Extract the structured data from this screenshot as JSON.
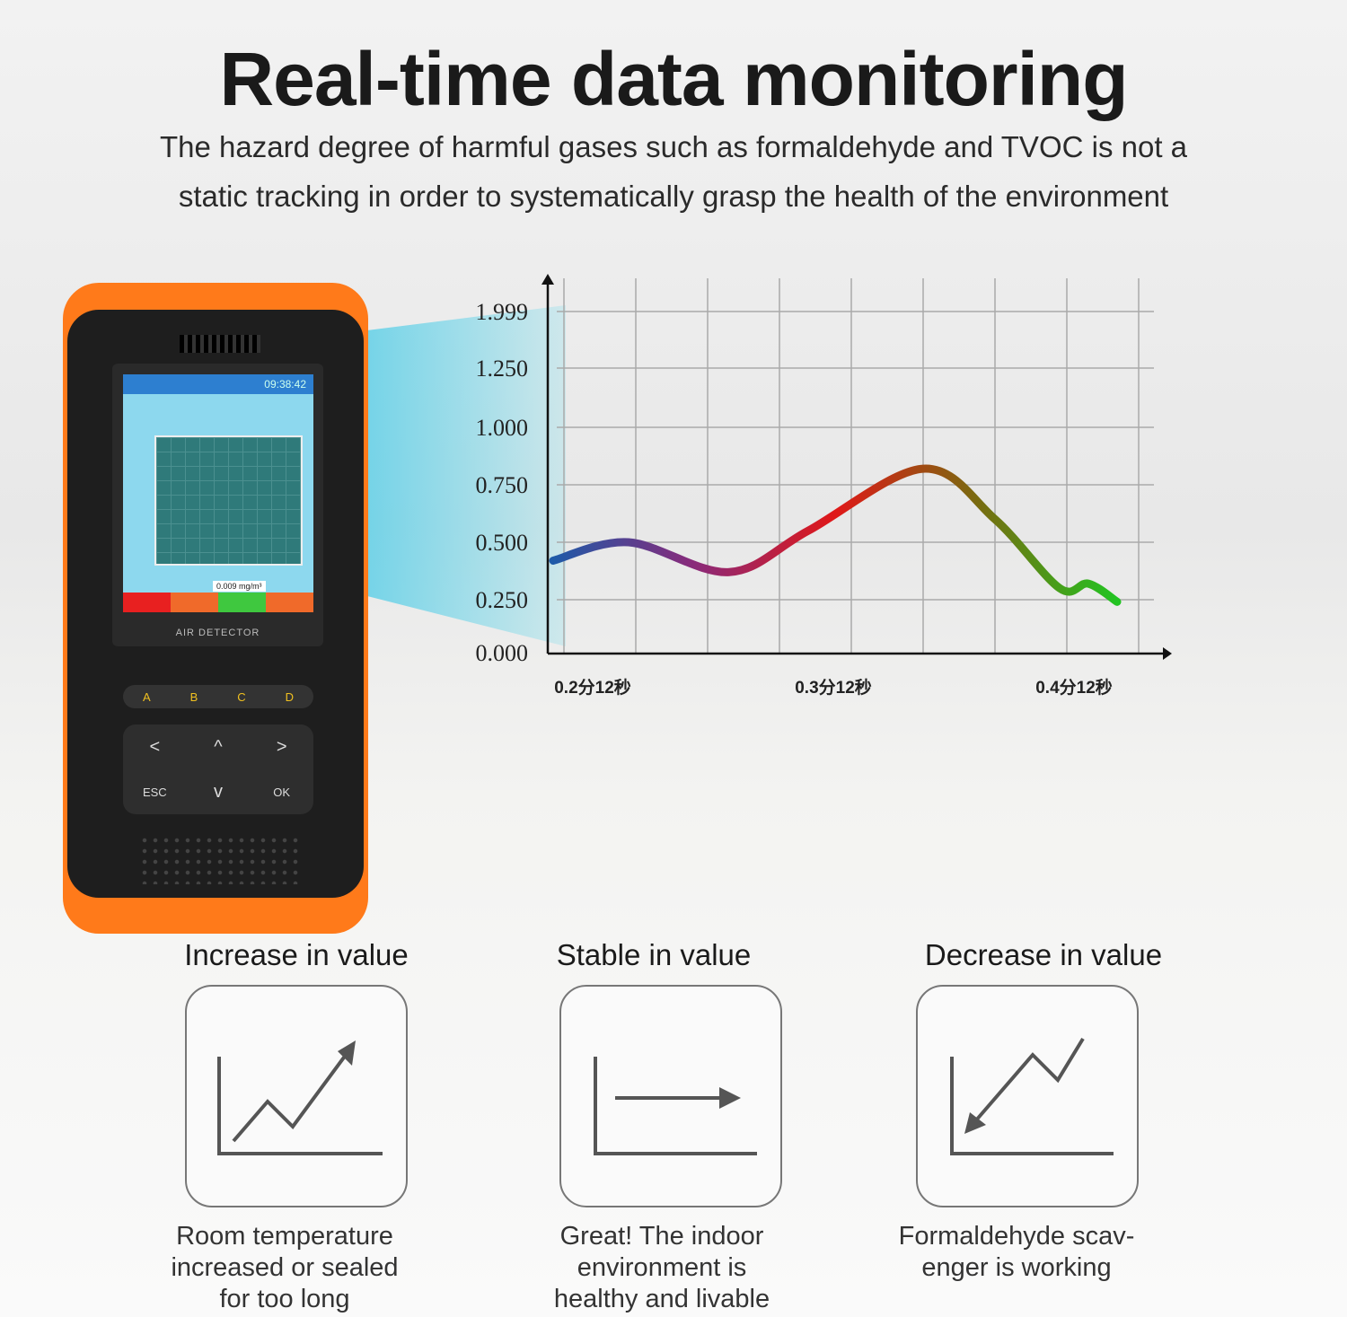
{
  "header": {
    "title": "Real-time data monitoring",
    "subtitle_line1": "The hazard degree of harmful gases such as formaldehyde and TVOC is not a",
    "subtitle_line2": "static tracking in order to systematically grasp the health of the environment"
  },
  "device": {
    "time": "09:38:42",
    "reading": "0.009 mg/m³",
    "brand": "AIR DETECTOR",
    "buttons_abcd": [
      "A",
      "B",
      "C",
      "D"
    ],
    "nav": {
      "left": "<",
      "up": "^",
      "right": ">",
      "esc": "ESC",
      "down": "v",
      "ok": "OK"
    },
    "level_colors": [
      "#e82020",
      "#f06a2a",
      "#3fc83f",
      "#f06a2a"
    ],
    "body_color": "#ff7a1a"
  },
  "chart_data": {
    "type": "line",
    "y_ticks": [
      "0.000",
      "0.250",
      "0.500",
      "0.750",
      "1.000",
      "1.250",
      "1.999"
    ],
    "x_ticks": [
      "0.2分12秒",
      "0.3分12秒",
      "0.4分12秒"
    ],
    "grid": true,
    "series": [
      {
        "x": [
          -0.15,
          0.9,
          2.3,
          3.4,
          5.0,
          6.0,
          6.9,
          7.3,
          7.7
        ],
        "y": [
          0.42,
          0.5,
          0.37,
          0.55,
          0.82,
          0.6,
          0.3,
          0.32,
          0.24
        ],
        "gradient": [
          "#1e5aa8",
          "#8a2a7a",
          "#e01818",
          "#7a6a10",
          "#22c422"
        ]
      }
    ]
  },
  "trends": [
    {
      "title": "Increase in value",
      "desc": [
        "Room temperature",
        "increased or sealed",
        "for too long"
      ]
    },
    {
      "title": "Stable in value",
      "desc": [
        "Great! The indoor",
        "environment is",
        "healthy and livable"
      ]
    },
    {
      "title": "Decrease in value",
      "desc": [
        "Formaldehyde scav-",
        "enger is working"
      ]
    }
  ]
}
